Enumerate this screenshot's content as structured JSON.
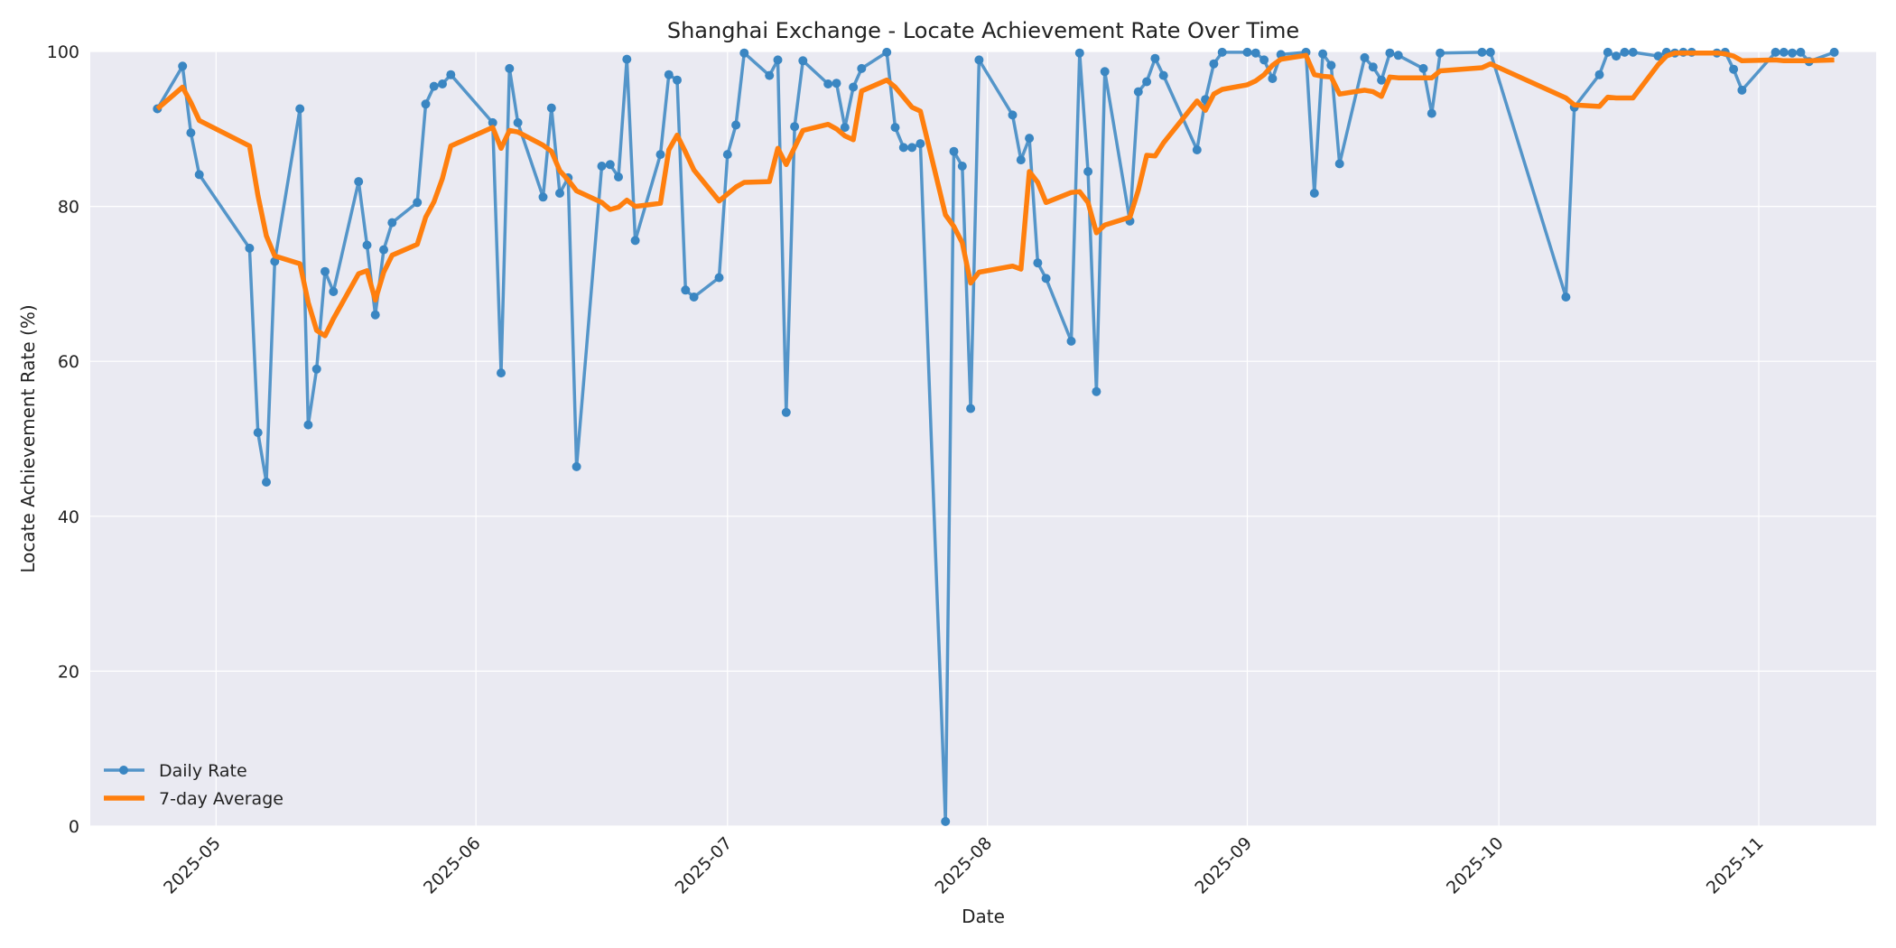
{
  "chart_data": {
    "type": "line",
    "title": "Shanghai Exchange - Locate Achievement Rate Over Time",
    "xlabel": "Date",
    "ylabel": "Locate Achievement Rate (%)",
    "ylim": [
      0,
      100
    ],
    "xlim": [
      "2025-04-16",
      "2025-11-15"
    ],
    "yticks": [
      0,
      20,
      40,
      60,
      80,
      100
    ],
    "xticks": [
      "2025-05-01",
      "2025-06-01",
      "2025-07-01",
      "2025-08-01",
      "2025-09-01",
      "2025-10-01",
      "2025-11-01"
    ],
    "xtick_labels": [
      "2025-05",
      "2025-06",
      "2025-07",
      "2025-08",
      "2025-09",
      "2025-10",
      "2025-11"
    ],
    "grid": true,
    "legend_position": "lower-left",
    "colors": {
      "daily": "#3a86c2",
      "avg": "#ff7f0e",
      "plot_bg": "#eaeaf2",
      "grid": "#ffffff"
    },
    "series": [
      {
        "name": "Daily Rate",
        "marker": "circle",
        "points": [
          [
            "2025-04-24",
            92.6
          ],
          [
            "2025-04-27",
            98.1
          ],
          [
            "2025-04-28",
            89.5
          ],
          [
            "2025-04-29",
            84.1
          ],
          [
            "2025-05-05",
            74.6
          ],
          [
            "2025-05-06",
            50.8
          ],
          [
            "2025-05-07",
            44.4
          ],
          [
            "2025-05-08",
            72.9
          ],
          [
            "2025-05-11",
            92.6
          ],
          [
            "2025-05-12",
            51.8
          ],
          [
            "2025-05-13",
            59.0
          ],
          [
            "2025-05-14",
            71.6
          ],
          [
            "2025-05-15",
            69.0
          ],
          [
            "2025-05-18",
            83.2
          ],
          [
            "2025-05-19",
            75.0
          ],
          [
            "2025-05-20",
            66.0
          ],
          [
            "2025-05-21",
            74.4
          ],
          [
            "2025-05-22",
            77.9
          ],
          [
            "2025-05-25",
            80.5
          ],
          [
            "2025-05-26",
            93.2
          ],
          [
            "2025-05-27",
            95.5
          ],
          [
            "2025-05-28",
            95.8
          ],
          [
            "2025-05-29",
            97.0
          ],
          [
            "2025-06-03",
            90.8
          ],
          [
            "2025-06-04",
            58.5
          ],
          [
            "2025-06-05",
            97.8
          ],
          [
            "2025-06-06",
            90.8
          ],
          [
            "2025-06-09",
            81.2
          ],
          [
            "2025-06-10",
            92.7
          ],
          [
            "2025-06-11",
            81.7
          ],
          [
            "2025-06-12",
            83.7
          ],
          [
            "2025-06-13",
            46.4
          ],
          [
            "2025-06-16",
            85.2
          ],
          [
            "2025-06-17",
            85.4
          ],
          [
            "2025-06-18",
            83.8
          ],
          [
            "2025-06-19",
            99.0
          ],
          [
            "2025-06-20",
            75.6
          ],
          [
            "2025-06-23",
            86.7
          ],
          [
            "2025-06-24",
            97.0
          ],
          [
            "2025-06-25",
            96.3
          ],
          [
            "2025-06-26",
            69.2
          ],
          [
            "2025-06-27",
            68.3
          ],
          [
            "2025-06-30",
            70.8
          ],
          [
            "2025-07-01",
            86.7
          ],
          [
            "2025-07-02",
            90.5
          ],
          [
            "2025-07-03",
            99.8
          ],
          [
            "2025-07-06",
            96.9
          ],
          [
            "2025-07-07",
            98.9
          ],
          [
            "2025-07-08",
            53.4
          ],
          [
            "2025-07-09",
            90.3
          ],
          [
            "2025-07-10",
            98.8
          ],
          [
            "2025-07-13",
            95.8
          ],
          [
            "2025-07-14",
            95.9
          ],
          [
            "2025-07-15",
            90.2
          ],
          [
            "2025-07-16",
            95.4
          ],
          [
            "2025-07-17",
            97.8
          ],
          [
            "2025-07-20",
            99.9
          ],
          [
            "2025-07-21",
            90.2
          ],
          [
            "2025-07-22",
            87.6
          ],
          [
            "2025-07-23",
            87.6
          ],
          [
            "2025-07-24",
            88.1
          ],
          [
            "2025-07-27",
            0.6
          ],
          [
            "2025-07-28",
            87.1
          ],
          [
            "2025-07-29",
            85.2
          ],
          [
            "2025-07-30",
            53.9
          ],
          [
            "2025-07-31",
            98.9
          ],
          [
            "2025-08-04",
            91.8
          ],
          [
            "2025-08-05",
            86.0
          ],
          [
            "2025-08-06",
            88.8
          ],
          [
            "2025-08-07",
            72.7
          ],
          [
            "2025-08-08",
            70.7
          ],
          [
            "2025-08-11",
            62.6
          ],
          [
            "2025-08-12",
            99.8
          ],
          [
            "2025-08-13",
            84.5
          ],
          [
            "2025-08-14",
            56.1
          ],
          [
            "2025-08-15",
            97.4
          ],
          [
            "2025-08-18",
            78.1
          ],
          [
            "2025-08-19",
            94.8
          ],
          [
            "2025-08-20",
            96.1
          ],
          [
            "2025-08-21",
            99.1
          ],
          [
            "2025-08-22",
            96.9
          ],
          [
            "2025-08-26",
            87.3
          ],
          [
            "2025-08-27",
            93.8
          ],
          [
            "2025-08-28",
            98.4
          ],
          [
            "2025-08-29",
            99.9
          ],
          [
            "2025-09-01",
            99.9
          ],
          [
            "2025-09-02",
            99.8
          ],
          [
            "2025-09-03",
            98.9
          ],
          [
            "2025-09-04",
            96.5
          ],
          [
            "2025-09-05",
            99.6
          ],
          [
            "2025-09-08",
            99.9
          ],
          [
            "2025-09-09",
            81.7
          ],
          [
            "2025-09-10",
            99.7
          ],
          [
            "2025-09-11",
            98.2
          ],
          [
            "2025-09-12",
            85.5
          ],
          [
            "2025-09-15",
            99.2
          ],
          [
            "2025-09-16",
            98.0
          ],
          [
            "2025-09-17",
            96.3
          ],
          [
            "2025-09-18",
            99.8
          ],
          [
            "2025-09-19",
            99.5
          ],
          [
            "2025-09-22",
            97.8
          ],
          [
            "2025-09-23",
            92.0
          ],
          [
            "2025-09-24",
            99.8
          ],
          [
            "2025-09-29",
            99.9
          ],
          [
            "2025-09-30",
            99.9
          ],
          [
            "2025-10-09",
            68.3
          ],
          [
            "2025-10-10",
            92.8
          ],
          [
            "2025-10-13",
            97.0
          ],
          [
            "2025-10-14",
            99.9
          ],
          [
            "2025-10-15",
            99.4
          ],
          [
            "2025-10-16",
            99.9
          ],
          [
            "2025-10-17",
            99.9
          ],
          [
            "2025-10-20",
            99.4
          ],
          [
            "2025-10-21",
            99.9
          ],
          [
            "2025-10-22",
            99.8
          ],
          [
            "2025-10-23",
            99.9
          ],
          [
            "2025-10-24",
            99.9
          ],
          [
            "2025-10-27",
            99.8
          ],
          [
            "2025-10-28",
            99.9
          ],
          [
            "2025-10-29",
            97.7
          ],
          [
            "2025-10-30",
            95.0
          ],
          [
            "2025-11-03",
            99.9
          ],
          [
            "2025-11-04",
            99.9
          ],
          [
            "2025-11-05",
            99.8
          ],
          [
            "2025-11-06",
            99.9
          ],
          [
            "2025-11-07",
            98.7
          ],
          [
            "2025-11-10",
            99.9
          ]
        ]
      },
      {
        "name": "7-day Average",
        "marker": "none",
        "points": [
          [
            "2025-04-24",
            92.6
          ],
          [
            "2025-04-27",
            95.4
          ],
          [
            "2025-04-28",
            93.4
          ],
          [
            "2025-04-29",
            91.1
          ],
          [
            "2025-05-05",
            87.8
          ],
          [
            "2025-05-06",
            81.4
          ],
          [
            "2025-05-07",
            76.2
          ],
          [
            "2025-05-08",
            73.6
          ],
          [
            "2025-05-11",
            72.6
          ],
          [
            "2025-05-12",
            67.6
          ],
          [
            "2025-05-13",
            64.0
          ],
          [
            "2025-05-14",
            63.3
          ],
          [
            "2025-05-15",
            65.5
          ],
          [
            "2025-05-18",
            71.3
          ],
          [
            "2025-05-19",
            71.7
          ],
          [
            "2025-05-20",
            67.9
          ],
          [
            "2025-05-21",
            71.5
          ],
          [
            "2025-05-22",
            73.7
          ],
          [
            "2025-05-25",
            75.1
          ],
          [
            "2025-05-26",
            78.6
          ],
          [
            "2025-05-27",
            80.6
          ],
          [
            "2025-05-28",
            83.6
          ],
          [
            "2025-05-29",
            87.8
          ],
          [
            "2025-06-03",
            90.2
          ],
          [
            "2025-06-04",
            87.5
          ],
          [
            "2025-06-05",
            89.8
          ],
          [
            "2025-06-06",
            89.6
          ],
          [
            "2025-06-09",
            87.9
          ],
          [
            "2025-06-10",
            87.1
          ],
          [
            "2025-06-11",
            84.6
          ],
          [
            "2025-06-12",
            83.4
          ],
          [
            "2025-06-13",
            82.0
          ],
          [
            "2025-06-16",
            80.5
          ],
          [
            "2025-06-17",
            79.6
          ],
          [
            "2025-06-18",
            79.9
          ],
          [
            "2025-06-19",
            80.8
          ],
          [
            "2025-06-20",
            80.0
          ],
          [
            "2025-06-23",
            80.4
          ],
          [
            "2025-06-24",
            87.3
          ],
          [
            "2025-06-25",
            89.2
          ],
          [
            "2025-06-26",
            87.0
          ],
          [
            "2025-06-27",
            84.7
          ],
          [
            "2025-06-30",
            80.7
          ],
          [
            "2025-07-01",
            81.6
          ],
          [
            "2025-07-02",
            82.5
          ],
          [
            "2025-07-03",
            83.1
          ],
          [
            "2025-07-06",
            83.2
          ],
          [
            "2025-07-07",
            87.5
          ],
          [
            "2025-07-08",
            85.4
          ],
          [
            "2025-07-09",
            87.6
          ],
          [
            "2025-07-10",
            89.8
          ],
          [
            "2025-07-13",
            90.6
          ],
          [
            "2025-07-14",
            90.0
          ],
          [
            "2025-07-15",
            89.1
          ],
          [
            "2025-07-16",
            88.6
          ],
          [
            "2025-07-17",
            94.9
          ],
          [
            "2025-07-20",
            96.3
          ],
          [
            "2025-07-21",
            95.4
          ],
          [
            "2025-07-22",
            94.1
          ],
          [
            "2025-07-23",
            92.8
          ],
          [
            "2025-07-24",
            92.3
          ],
          [
            "2025-07-27",
            78.9
          ],
          [
            "2025-07-28",
            77.4
          ],
          [
            "2025-07-29",
            75.3
          ],
          [
            "2025-07-30",
            70.1
          ],
          [
            "2025-07-31",
            71.5
          ],
          [
            "2025-08-04",
            72.3
          ],
          [
            "2025-08-05",
            71.9
          ],
          [
            "2025-08-06",
            84.5
          ],
          [
            "2025-08-07",
            83.1
          ],
          [
            "2025-08-08",
            80.5
          ],
          [
            "2025-08-11",
            81.8
          ],
          [
            "2025-08-12",
            81.9
          ],
          [
            "2025-08-13",
            80.5
          ],
          [
            "2025-08-14",
            76.6
          ],
          [
            "2025-08-15",
            77.6
          ],
          [
            "2025-08-18",
            78.6
          ],
          [
            "2025-08-19",
            82.1
          ],
          [
            "2025-08-20",
            86.6
          ],
          [
            "2025-08-21",
            86.5
          ],
          [
            "2025-08-22",
            88.2
          ],
          [
            "2025-08-26",
            93.6
          ],
          [
            "2025-08-27",
            92.4
          ],
          [
            "2025-08-28",
            94.5
          ],
          [
            "2025-08-29",
            95.1
          ],
          [
            "2025-09-01",
            95.7
          ],
          [
            "2025-09-02",
            96.2
          ],
          [
            "2025-09-03",
            97.0
          ],
          [
            "2025-09-04",
            98.2
          ],
          [
            "2025-09-05",
            99.0
          ],
          [
            "2025-09-08",
            99.5
          ],
          [
            "2025-09-09",
            97.0
          ],
          [
            "2025-09-10",
            96.8
          ],
          [
            "2025-09-11",
            96.7
          ],
          [
            "2025-09-12",
            94.5
          ],
          [
            "2025-09-15",
            95.0
          ],
          [
            "2025-09-16",
            94.8
          ],
          [
            "2025-09-17",
            94.2
          ],
          [
            "2025-09-18",
            96.7
          ],
          [
            "2025-09-19",
            96.6
          ],
          [
            "2025-09-22",
            96.6
          ],
          [
            "2025-09-23",
            96.6
          ],
          [
            "2025-09-24",
            97.5
          ],
          [
            "2025-09-29",
            97.9
          ],
          [
            "2025-09-30",
            98.4
          ],
          [
            "2025-10-09",
            94.0
          ],
          [
            "2025-10-10",
            93.1
          ],
          [
            "2025-10-13",
            92.9
          ],
          [
            "2025-10-14",
            94.1
          ],
          [
            "2025-10-15",
            94.0
          ],
          [
            "2025-10-16",
            94.0
          ],
          [
            "2025-10-17",
            94.0
          ],
          [
            "2025-10-20",
            98.3
          ],
          [
            "2025-10-21",
            99.4
          ],
          [
            "2025-10-22",
            99.8
          ],
          [
            "2025-10-23",
            99.8
          ],
          [
            "2025-10-24",
            99.8
          ],
          [
            "2025-10-27",
            99.8
          ],
          [
            "2025-10-28",
            99.7
          ],
          [
            "2025-10-29",
            99.4
          ],
          [
            "2025-10-30",
            98.8
          ],
          [
            "2025-11-03",
            98.9
          ],
          [
            "2025-11-04",
            98.8
          ],
          [
            "2025-11-05",
            98.8
          ],
          [
            "2025-11-06",
            98.8
          ],
          [
            "2025-11-07",
            98.8
          ],
          [
            "2025-11-10",
            98.9
          ]
        ]
      }
    ]
  }
}
